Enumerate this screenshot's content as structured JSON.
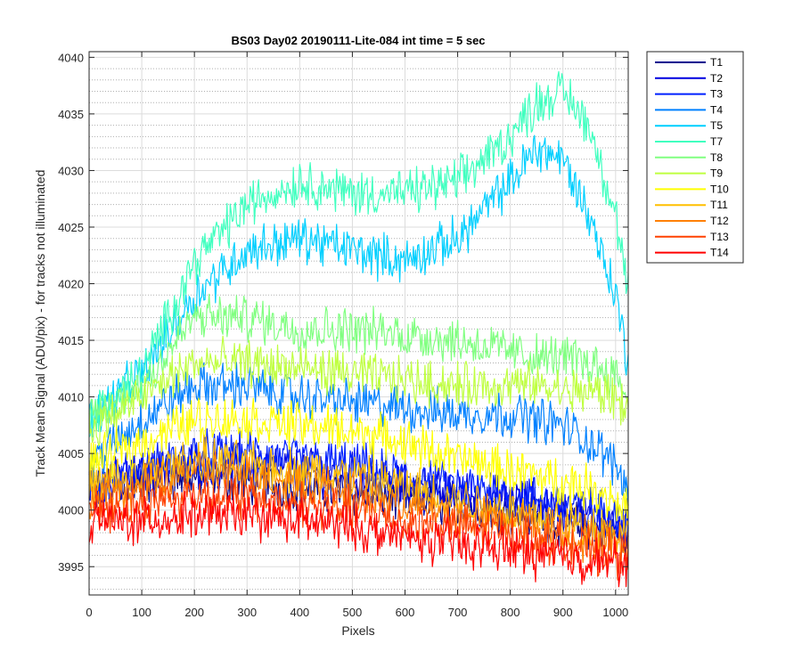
{
  "chart_data": {
    "type": "line",
    "title": "BS03 Day02 20190111-Lite-084 int time = 5 sec",
    "xlabel": "Pixels",
    "ylabel": "Track Mean Signal (ADU/pix) - for tracks not illuminated",
    "xlim": [
      0,
      1024
    ],
    "ylim": [
      3992.5,
      4040.5
    ],
    "xticks": [
      0,
      100,
      200,
      300,
      400,
      500,
      600,
      700,
      800,
      900,
      1000
    ],
    "yticks": [
      3995,
      4000,
      4005,
      4010,
      4015,
      4020,
      4025,
      4030,
      4035,
      4040
    ],
    "grid": true,
    "minor_grid": true,
    "legend_position": "outside-right",
    "noise_note": "each trace has high-frequency noise of roughly ±1.5 ADU around the listed profile",
    "x": [
      0,
      100,
      200,
      300,
      400,
      500,
      600,
      700,
      800,
      850,
      900,
      950,
      1000,
      1024
    ],
    "series": [
      {
        "name": "T1",
        "color": "#00008f",
        "values": [
          4002,
          4002.5,
          4003,
          4002.5,
          4002,
          4001.5,
          4001,
          4000.5,
          4000,
          3999.5,
          3999,
          3998.5,
          3998,
          3997.5
        ]
      },
      {
        "name": "T2",
        "color": "#0000df",
        "values": [
          4002,
          4003,
          4004,
          4004,
          4003.5,
          4003,
          4002,
          4001.5,
          4001,
          4000.5,
          4000,
          3999.5,
          3999,
          3998.5
        ]
      },
      {
        "name": "T3",
        "color": "#0020ff",
        "values": [
          4002,
          4003.5,
          4005,
          4005,
          4004.5,
          4004,
          4003,
          4002,
          4001.5,
          4001,
          4000.5,
          4000,
          3999.5,
          3999
        ]
      },
      {
        "name": "T4",
        "color": "#0080ff",
        "values": [
          4004,
          4008,
          4011,
          4011,
          4010,
          4009.5,
          4009,
          4008.5,
          4008.5,
          4008,
          4007.5,
          4006,
          4004,
          4002
        ]
      },
      {
        "name": "T5",
        "color": "#00cfff",
        "values": [
          4008,
          4012,
          4019,
          4023,
          4024,
          4023,
          4022,
          4024,
          4029,
          4032,
          4031,
          4026,
          4019,
          4013
        ]
      },
      {
        "name": "T7",
        "color": "#40ffbf",
        "values": [
          4008,
          4012,
          4022,
          4027,
          4029,
          4028,
          4028,
          4029,
          4033,
          4036,
          4037,
          4034,
          4026,
          4019
        ]
      },
      {
        "name": "T8",
        "color": "#80ff80",
        "values": [
          4008,
          4011,
          4017,
          4017,
          4016,
          4016,
          4015.5,
          4015,
          4014,
          4013.5,
          4013.5,
          4013,
          4012,
          4010
        ]
      },
      {
        "name": "T9",
        "color": "#bfff40",
        "values": [
          4007,
          4010,
          4013,
          4013,
          4012.5,
          4012,
          4011.5,
          4011,
          4011,
          4011,
          4010.5,
          4010.5,
          4010,
          4009
        ]
      },
      {
        "name": "T10",
        "color": "#ffff00",
        "values": [
          4004,
          4006,
          4008,
          4008,
          4007.5,
          4007,
          4006,
          4004.5,
          4003.5,
          4003,
          4002.5,
          4002,
          4001,
          4000
        ]
      },
      {
        "name": "T11",
        "color": "#ffbf00",
        "values": [
          4002,
          4003,
          4004.5,
          4004,
          4003.5,
          4003,
          4002,
          4001,
          4000,
          3999.5,
          3999,
          3998.5,
          3998,
          3997.5
        ]
      },
      {
        "name": "T12",
        "color": "#ff8000",
        "values": [
          4001,
          4002,
          4003.5,
          4003,
          4002.5,
          4001.5,
          4000.5,
          3999.5,
          3999,
          3998.5,
          3998,
          3997.5,
          3997,
          3997
        ]
      },
      {
        "name": "T13",
        "color": "#ff4000",
        "values": [
          4000,
          4000.5,
          4001.5,
          4001,
          4000.5,
          4000,
          3999,
          3998.5,
          3998,
          3997.5,
          3997,
          3996.5,
          3996,
          3996
        ]
      },
      {
        "name": "T14",
        "color": "#ff0000",
        "values": [
          3999,
          3999,
          3999.5,
          3999.5,
          3999,
          3998.5,
          3997.5,
          3997,
          3996.5,
          3996,
          3996,
          3995.5,
          3995.5,
          3995
        ]
      }
    ]
  }
}
